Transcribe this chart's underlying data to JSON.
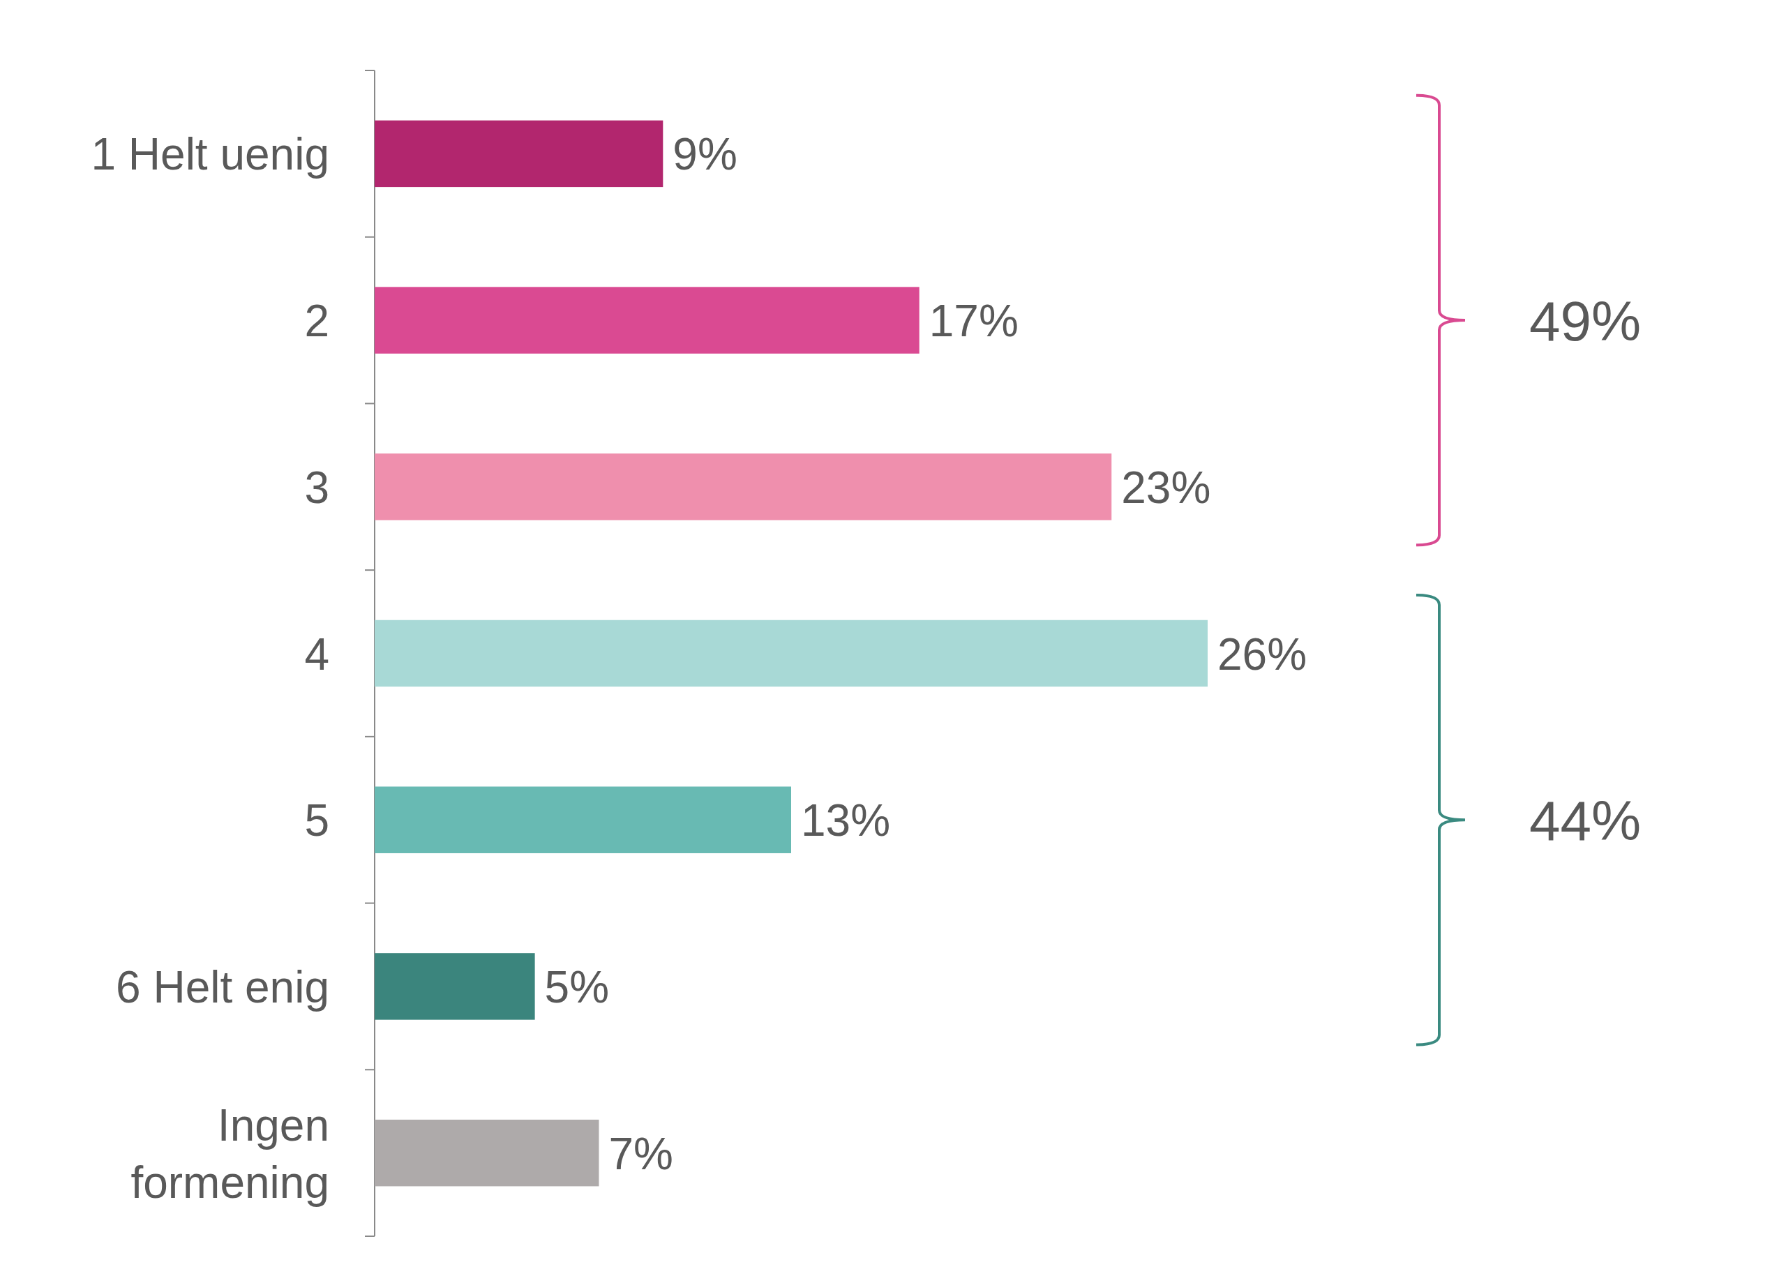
{
  "chart_data": {
    "type": "bar",
    "orientation": "horizontal",
    "categories": [
      "1 Helt uenig",
      "2",
      "3",
      "4",
      "5",
      "6 Helt enig",
      "Ingen formening"
    ],
    "values": [
      9,
      17,
      23,
      26,
      13,
      5,
      7
    ],
    "colors": [
      "#b2266e",
      "#da4a92",
      "#ef8fad",
      "#a8d9d6",
      "#68bab3",
      "#3b857d",
      "#aeaaaa"
    ],
    "value_labels": [
      "9%",
      "17%",
      "23%",
      "26%",
      "13%",
      "5%",
      "7%"
    ],
    "annotations": [
      "49%",
      "44%"
    ]
  }
}
